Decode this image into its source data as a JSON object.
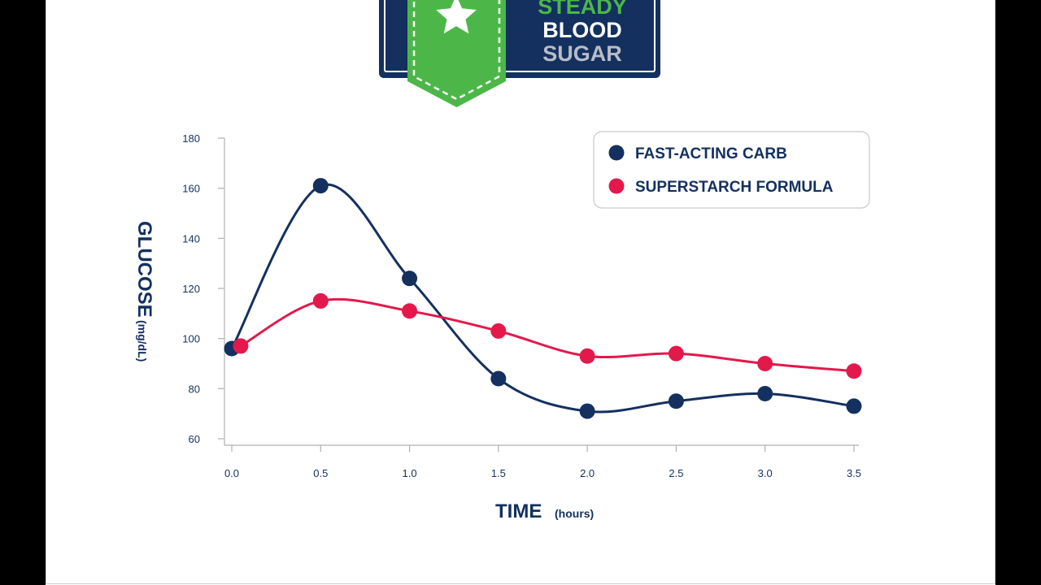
{
  "badge": {
    "line1": "STEADY",
    "line2": "BLOOD",
    "line3": "SUGAR",
    "line1_color": "#4cb748",
    "line2_color": "#ffffff",
    "line3_color": "#b9bcc6",
    "panel_color": "#13305f",
    "ribbon_color": "#4cb748",
    "icon": "star-icon"
  },
  "chart_data": {
    "type": "line",
    "x": [
      0.0,
      0.5,
      1.0,
      1.5,
      2.0,
      2.5,
      3.0,
      3.5
    ],
    "x_tick_labels": [
      "0.0",
      "0.5",
      "1.0",
      "1.5",
      "2.0",
      "2.5",
      "3.0",
      "3.5"
    ],
    "y_ticks": [
      60,
      80,
      100,
      120,
      140,
      160,
      180
    ],
    "y_tick_labels": [
      "60",
      "80",
      "100",
      "120",
      "140",
      "160",
      "180"
    ],
    "xlim": [
      0,
      3.5
    ],
    "ylim": [
      60,
      180
    ],
    "xlabel": "TIME",
    "xlabel_unit": "(hours)",
    "ylabel": "GLUCOSE",
    "ylabel_unit": "(mg/dL)",
    "grid": false,
    "legend_position": "top-right",
    "series": [
      {
        "name": "FAST-ACTING CARB",
        "color": "#13305f",
        "x": [
          0.0,
          0.5,
          1.0,
          1.5,
          2.0,
          2.5,
          3.0,
          3.5
        ],
        "values": [
          96,
          161,
          124,
          84,
          71,
          75,
          78,
          73
        ]
      },
      {
        "name": "SUPERSTARCH FORMULA",
        "color": "#e3194b",
        "x": [
          0.05,
          0.5,
          1.0,
          1.5,
          2.0,
          2.5,
          3.0,
          3.5
        ],
        "values": [
          97,
          115,
          111,
          103,
          93,
          94,
          90,
          87
        ]
      }
    ]
  }
}
